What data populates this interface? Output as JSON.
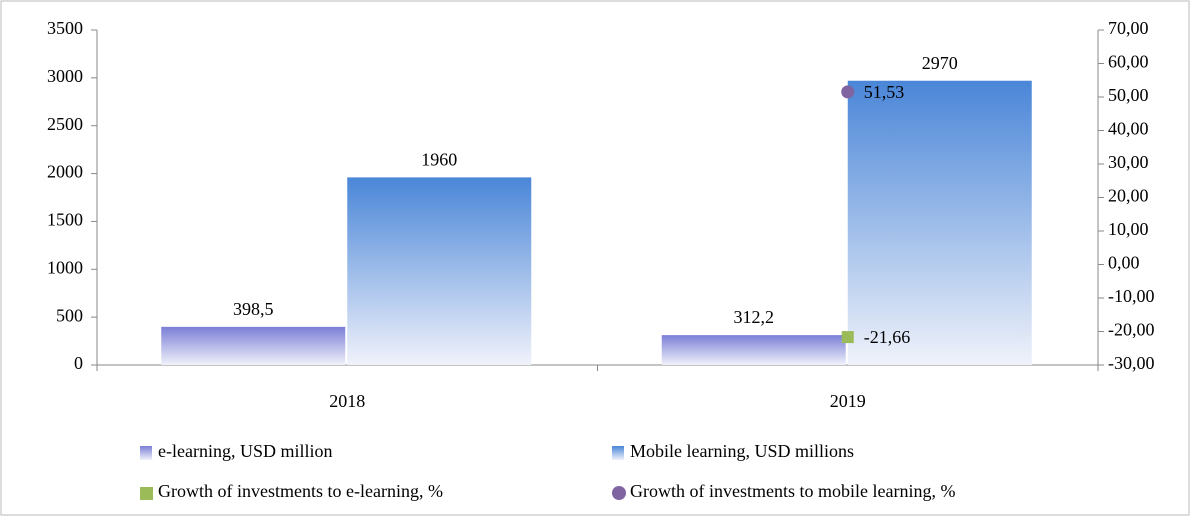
{
  "chart_data": {
    "type": "bar",
    "categories": [
      "2018",
      "2019"
    ],
    "series": [
      {
        "name": "e-learning, USD million",
        "color": "#7b7fd6",
        "values": [
          398.5,
          312.2
        ],
        "value_labels": [
          "398,5",
          "312,2"
        ]
      },
      {
        "name": "Mobile learning, USD millions",
        "color": "#4a86d8",
        "values": [
          1960,
          2970
        ]
      },
      {
        "name": "Growth of investments to e-learning, %",
        "type": "scatter",
        "marker": "square",
        "color": "#9bbb59",
        "axis": "y2",
        "values": [
          null,
          -21.66
        ],
        "value_labels": [
          null,
          "-21,66"
        ]
      },
      {
        "name": "Growth of investments to mobile learning, %",
        "type": "scatter",
        "marker": "circle",
        "color": "#8064a2",
        "axis": "y2",
        "values": [
          null,
          51.53
        ],
        "value_labels": [
          null,
          "51,53"
        ]
      }
    ],
    "ylim": [
      0,
      3500
    ],
    "yticks": [
      0,
      500,
      1000,
      1500,
      2000,
      2500,
      3000,
      3500
    ],
    "y2lim": [
      -30,
      70
    ],
    "y2ticks": [
      {
        "value": -30,
        "label": "-30,00"
      },
      {
        "value": -20,
        "label": "-20,00"
      },
      {
        "value": -10,
        "label": "-10,00"
      },
      {
        "value": 0,
        "label": "0,00"
      },
      {
        "value": 10,
        "label": "10,00"
      },
      {
        "value": 20,
        "label": "20,00"
      },
      {
        "value": 30,
        "label": "30,00"
      },
      {
        "value": 40,
        "label": "40,00"
      },
      {
        "value": 50,
        "label": "50,00"
      },
      {
        "value": 60,
        "label": "60,00"
      },
      {
        "value": 70,
        "label": "70,00"
      }
    ],
    "grid": false,
    "legend": "bottom"
  }
}
